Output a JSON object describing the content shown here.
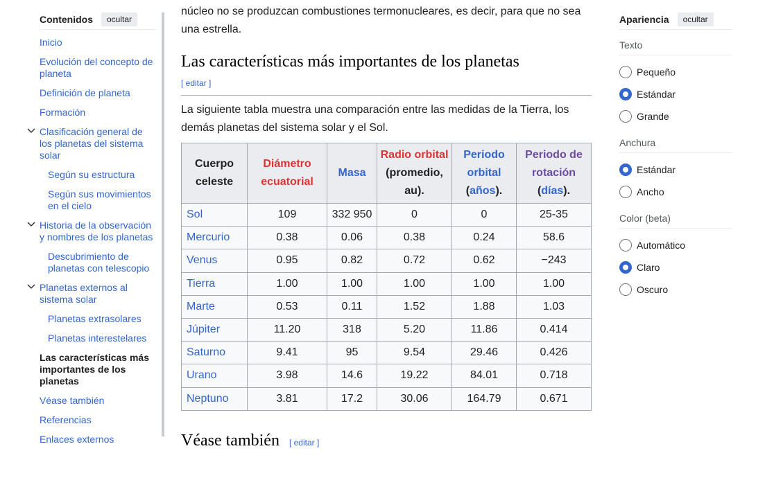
{
  "toc": {
    "title": "Contenidos",
    "hide": "ocultar",
    "items": [
      {
        "label": "Inicio",
        "level": 0
      },
      {
        "label": "Evolución del concepto de planeta",
        "level": 0
      },
      {
        "label": "Definición de planeta",
        "level": 0
      },
      {
        "label": "Formación",
        "level": 0
      },
      {
        "label": "Clasificación general de los planetas del sistema solar",
        "level": 0,
        "expanded": true
      },
      {
        "label": "Según su estructura",
        "level": 1
      },
      {
        "label": "Según sus movimientos en el cielo",
        "level": 1
      },
      {
        "label": "Historia de la observación y nombres de los planetas",
        "level": 0,
        "expanded": true
      },
      {
        "label": "Descubrimiento de planetas con telescopio",
        "level": 1
      },
      {
        "label": "Planetas externos al sistema solar",
        "level": 0,
        "expanded": true
      },
      {
        "label": "Planetas extrasolares",
        "level": 1
      },
      {
        "label": "Planetas interestelares",
        "level": 1
      },
      {
        "label": "Las características más importantes de los planetas",
        "level": 0,
        "active": true
      },
      {
        "label": "Véase también",
        "level": 0
      },
      {
        "label": "Referencias",
        "level": 0
      },
      {
        "label": "Enlaces externos",
        "level": 0
      }
    ]
  },
  "main": {
    "intro": "núcleo no se produzcan combustiones termonucleares, es decir, para que no sea una estrella.",
    "heading": "Las características más importantes de los planetas",
    "edit": "[ editar ]",
    "paragraph": "La siguiente tabla muestra una comparación entre las medidas de la Tierra, los demás planetas del sistema solar y el Sol.",
    "table": {
      "headers": {
        "c0": "Cuerpo celeste",
        "c1": "Diámetro ecuatorial",
        "c2": "Masa",
        "c3a": "Radio orbital",
        "c3b": "(promedio, au).",
        "c4a": "Periodo orbital",
        "c4b": "años",
        "c5a": "Periodo de rotación",
        "c5b": "días"
      },
      "rows": [
        [
          "Sol",
          "109",
          "332 950",
          "0",
          "0",
          "25-35"
        ],
        [
          "Mercurio",
          "0.38",
          "0.06",
          "0.38",
          "0.24",
          "58.6"
        ],
        [
          "Venus",
          "0.95",
          "0.82",
          "0.72",
          "0.62",
          "−243"
        ],
        [
          "Tierra",
          "1.00",
          "1.00",
          "1.00",
          "1.00",
          "1.00"
        ],
        [
          "Marte",
          "0.53",
          "0.11",
          "1.52",
          "1.88",
          "1.03"
        ],
        [
          "Júpiter",
          "11.20",
          "318",
          "5.20",
          "11.86",
          "0.414"
        ],
        [
          "Saturno",
          "9.41",
          "95",
          "9.54",
          "29.46",
          "0.426"
        ],
        [
          "Urano",
          "3.98",
          "14.6",
          "19.22",
          "84.01",
          "0.718"
        ],
        [
          "Neptuno",
          "3.81",
          "17.2",
          "30.06",
          "164.79",
          "0.671"
        ]
      ]
    },
    "next_heading": "Véase también",
    "next_edit": "[ editar ]"
  },
  "appearance": {
    "title": "Apariencia",
    "hide": "ocultar",
    "groups": [
      {
        "label": "Texto",
        "options": [
          {
            "label": "Pequeño",
            "selected": false
          },
          {
            "label": "Estándar",
            "selected": true
          },
          {
            "label": "Grande",
            "selected": false
          }
        ]
      },
      {
        "label": "Anchura",
        "options": [
          {
            "label": "Estándar",
            "selected": true
          },
          {
            "label": "Ancho",
            "selected": false
          }
        ]
      },
      {
        "label": "Color (beta)",
        "options": [
          {
            "label": "Automático",
            "selected": false
          },
          {
            "label": "Claro",
            "selected": true
          },
          {
            "label": "Oscuro",
            "selected": false
          }
        ]
      }
    ]
  }
}
